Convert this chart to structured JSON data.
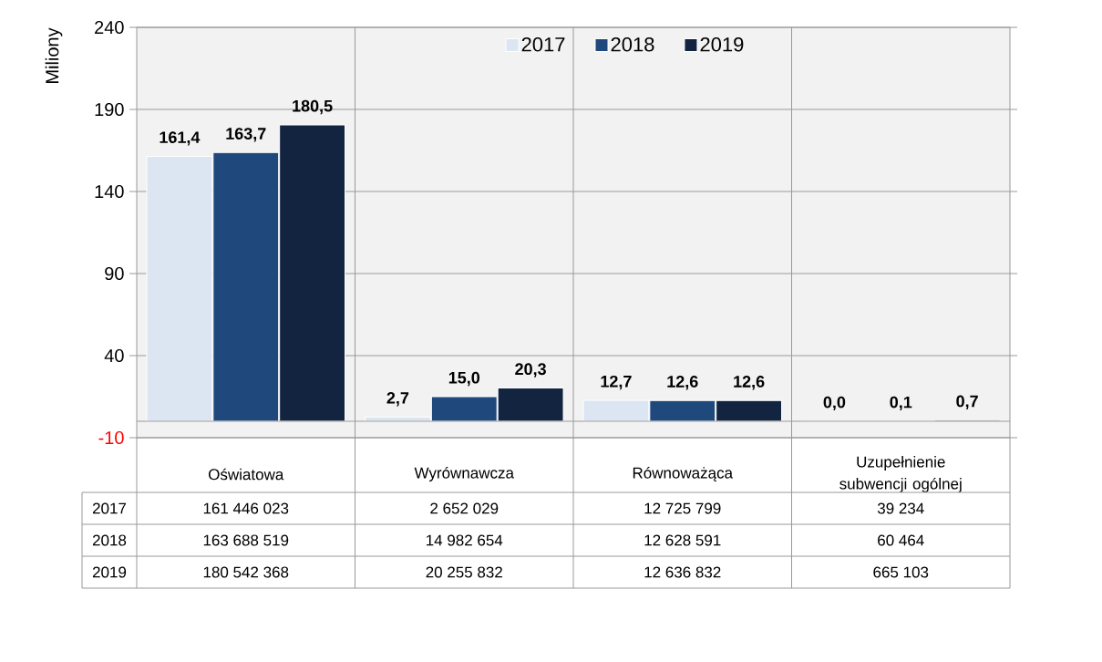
{
  "chart_data": {
    "type": "bar",
    "ylabel": "Miliony",
    "categories": [
      "Oświatowa",
      "Wyrównawcza",
      "Równoważąca",
      "Uzupełnienie subwencji ogólnej"
    ],
    "series": [
      {
        "name": "2017",
        "color": "#dce6f2",
        "values": [
          161.446023,
          2.652029,
          12.725799,
          0.039234
        ],
        "value_labels": [
          "161,4",
          "2,7",
          "12,7",
          "0,0"
        ]
      },
      {
        "name": "2018",
        "color": "#1f497d",
        "values": [
          163.688519,
          14.982654,
          12.628591,
          0.060464
        ],
        "value_labels": [
          "163,7",
          "15,0",
          "12,6",
          "0,1"
        ]
      },
      {
        "name": "2019",
        "color": "#12243f",
        "values": [
          180.542368,
          20.255832,
          12.636832,
          0.665103
        ],
        "value_labels": [
          "180,5",
          "20,3",
          "12,6",
          "0,7"
        ]
      }
    ],
    "ylim": [
      -10,
      240
    ],
    "yticks": [
      -10,
      40,
      90,
      140,
      190,
      240
    ],
    "grid": true,
    "legend": "top",
    "annotations": [
      "161 446 023",
      "2 652 029",
      "12 725 799",
      "39 234",
      "163 688 519",
      "14 982 654",
      "12 628 591",
      "60 464",
      "180 542 368",
      "20 255 832",
      "12 636 832",
      "665 103"
    ]
  }
}
